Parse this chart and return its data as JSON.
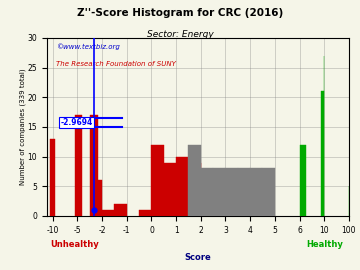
{
  "title": "Z''-Score Histogram for CRC (2016)",
  "subtitle": "Sector: Energy",
  "watermark1": "©www.textbiz.org",
  "watermark2": "The Research Foundation of SUNY",
  "xlabel_score": "Score",
  "ylabel": "Number of companies (339 total)",
  "xlabel_unhealthy": "Unhealthy",
  "xlabel_healthy": "Healthy",
  "marker_value": -2.9694,
  "marker_label": "-2.9694",
  "ylim_max": 30,
  "bg_color": "#f5f5e8",
  "tick_scores": [
    -10,
    -5,
    -2,
    -1,
    0,
    1,
    2,
    3,
    4,
    5,
    6,
    10,
    100
  ],
  "tick_labels": [
    "-10",
    "-5",
    "-2",
    "-1",
    "0",
    "1",
    "2",
    "3",
    "4",
    "5",
    "6",
    "10",
    "100"
  ],
  "histogram_bars": [
    [
      -10.5,
      -9.5,
      13,
      "#cc0000"
    ],
    [
      -5.5,
      -4.5,
      17,
      "#cc0000"
    ],
    [
      -3.5,
      -2.5,
      17,
      "#cc0000"
    ],
    [
      -2.5,
      -2.0,
      6,
      "#cc0000"
    ],
    [
      -2.0,
      -1.5,
      1,
      "#cc0000"
    ],
    [
      -1.5,
      -1.0,
      2,
      "#cc0000"
    ],
    [
      -0.5,
      0.0,
      1,
      "#cc0000"
    ],
    [
      0.0,
      0.5,
      12,
      "#cc0000"
    ],
    [
      0.5,
      1.0,
      9,
      "#cc0000"
    ],
    [
      1.0,
      1.5,
      10,
      "#cc0000"
    ],
    [
      1.5,
      2.0,
      9,
      "#cc0000"
    ],
    [
      1.5,
      2.0,
      12,
      "#808080"
    ],
    [
      2.0,
      2.5,
      8,
      "#808080"
    ],
    [
      2.5,
      3.0,
      8,
      "#808080"
    ],
    [
      3.0,
      3.5,
      8,
      "#808080"
    ],
    [
      3.5,
      4.0,
      8,
      "#808080"
    ],
    [
      4.0,
      4.5,
      8,
      "#808080"
    ],
    [
      4.5,
      5.0,
      8,
      "#808080"
    ],
    [
      6.0,
      7.0,
      12,
      "#00aa00"
    ],
    [
      9.5,
      10.5,
      21,
      "#00aa00"
    ],
    [
      10.0,
      11.0,
      27,
      "#00aa00"
    ],
    [
      99.5,
      100.5,
      5,
      "#00aa00"
    ]
  ]
}
